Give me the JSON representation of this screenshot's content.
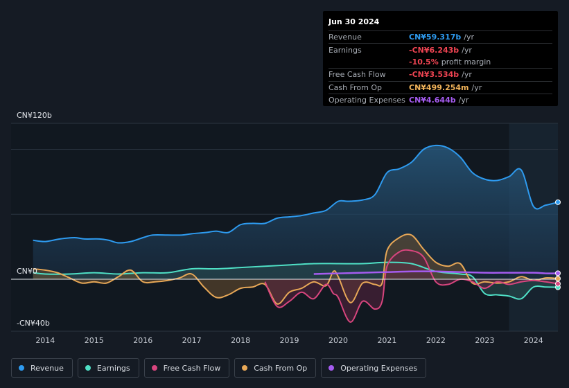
{
  "tooltip": {
    "date": "Jun 30 2024",
    "rows": [
      {
        "label": "Revenue",
        "value": "CN¥59.317b",
        "unit": "/yr",
        "color": "#2e9bf0"
      },
      {
        "label": "Earnings",
        "value": "-CN¥6.243b",
        "unit": "/yr",
        "color": "#ef4452"
      },
      {
        "label": "",
        "value": "-10.5%",
        "unit": "profit margin",
        "color": "#ef4452"
      },
      {
        "label": "Free Cash Flow",
        "value": "-CN¥3.534b",
        "unit": "/yr",
        "color": "#ef4452"
      },
      {
        "label": "Cash From Op",
        "value": "CN¥499.254m",
        "unit": "/yr",
        "color": "#f2b45a"
      },
      {
        "label": "Operating Expenses",
        "value": "CN¥4.644b",
        "unit": "/yr",
        "color": "#a55cf0"
      }
    ]
  },
  "legend": [
    {
      "label": "Revenue",
      "color": "#2e9bf0"
    },
    {
      "label": "Earnings",
      "color": "#4fe0c6"
    },
    {
      "label": "Free Cash Flow",
      "color": "#d8457e"
    },
    {
      "label": "Cash From Op",
      "color": "#e8a857"
    },
    {
      "label": "Operating Expenses",
      "color": "#a55cf0"
    }
  ],
  "chart_data": {
    "type": "area",
    "title": "",
    "ylabel_top": "CN¥120b",
    "ylabel_zero": "CN¥0",
    "ylabel_bottom": "-CN¥40b",
    "ylim": [
      -40,
      120
    ],
    "x_ticks": [
      "2014",
      "2015",
      "2016",
      "2017",
      "2018",
      "2019",
      "2020",
      "2021",
      "2022",
      "2023",
      "2024"
    ],
    "x_tick_values": [
      2014.0,
      2015.0,
      2016.0,
      2017.0,
      2018.0,
      2019.0,
      2020.0,
      2021.0,
      2022.0,
      2023.0,
      2024.0
    ],
    "xlim": [
      2013.3,
      2024.5
    ],
    "forecast_start": 2023.5,
    "series": [
      {
        "name": "Revenue",
        "color": "#2e9bf0",
        "x": [
          2013.75,
          2014.0,
          2014.3,
          2014.6,
          2014.8,
          2015.1,
          2015.3,
          2015.5,
          2015.75,
          2016.0,
          2016.2,
          2016.5,
          2016.8,
          2017.0,
          2017.3,
          2017.5,
          2017.75,
          2018.0,
          2018.25,
          2018.5,
          2018.75,
          2019.0,
          2019.25,
          2019.5,
          2019.75,
          2020.0,
          2020.2,
          2020.5,
          2020.75,
          2021.0,
          2021.25,
          2021.5,
          2021.75,
          2022.0,
          2022.25,
          2022.5,
          2022.75,
          2023.0,
          2023.25,
          2023.5,
          2023.75,
          2024.0,
          2024.25,
          2024.5
        ],
        "y": [
          30,
          29,
          31,
          32,
          31,
          31,
          30,
          28,
          29,
          32,
          34,
          34,
          34,
          35,
          36,
          37,
          36,
          42,
          43,
          43,
          47,
          48,
          49,
          51,
          53,
          60,
          60,
          61,
          65,
          82,
          85,
          90,
          100,
          103,
          101,
          94,
          82,
          77,
          76,
          79,
          84,
          56,
          57,
          59.3
        ]
      },
      {
        "name": "Earnings",
        "color": "#4fe0c6",
        "x": [
          2013.75,
          2014.0,
          2014.5,
          2015.0,
          2015.5,
          2016.0,
          2016.5,
          2017.0,
          2017.5,
          2018.0,
          2018.5,
          2019.0,
          2019.5,
          2020.0,
          2020.5,
          2021.0,
          2021.5,
          2022.0,
          2022.5,
          2022.75,
          2023.0,
          2023.25,
          2023.5,
          2023.75,
          2024.0,
          2024.25,
          2024.5
        ],
        "y": [
          5,
          4,
          4,
          5,
          4,
          5,
          5,
          8,
          8,
          9,
          10,
          11,
          12,
          12,
          12,
          13,
          12,
          6,
          4,
          2,
          -11,
          -12,
          -13,
          -15,
          -6,
          -6,
          -6.2
        ]
      },
      {
        "name": "Free Cash Flow",
        "color": "#d8457e",
        "x": [
          2018.5,
          2018.75,
          2019.0,
          2019.25,
          2019.5,
          2019.75,
          2019.9,
          2020.0,
          2020.25,
          2020.5,
          2020.75,
          2020.9,
          2021.0,
          2021.25,
          2021.5,
          2021.75,
          2022.0,
          2022.25,
          2022.5,
          2022.75,
          2023.0,
          2023.25,
          2023.5,
          2023.75,
          2024.0,
          2024.25,
          2024.5
        ],
        "y": [
          -2,
          -21,
          -17,
          -10,
          -15,
          -4,
          -11,
          -14,
          -33,
          -17,
          -23,
          -17,
          10,
          21,
          22,
          17,
          -2,
          -4,
          0,
          -2,
          -7,
          -2,
          -4,
          -2,
          -1,
          -2,
          -3.5
        ]
      },
      {
        "name": "Cash From Op",
        "color": "#e8a857",
        "x": [
          2013.75,
          2014.0,
          2014.25,
          2014.5,
          2014.75,
          2015.0,
          2015.25,
          2015.5,
          2015.75,
          2016.0,
          2016.25,
          2016.5,
          2016.75,
          2017.0,
          2017.25,
          2017.5,
          2017.75,
          2018.0,
          2018.25,
          2018.5,
          2018.75,
          2019.0,
          2019.25,
          2019.5,
          2019.75,
          2019.9,
          2020.0,
          2020.25,
          2020.5,
          2020.75,
          2020.9,
          2021.0,
          2021.25,
          2021.5,
          2021.75,
          2022.0,
          2022.25,
          2022.5,
          2022.75,
          2023.0,
          2023.25,
          2023.5,
          2023.75,
          2024.0,
          2024.25,
          2024.5
        ],
        "y": [
          8,
          7,
          5,
          1,
          -3,
          -2,
          -3,
          2,
          7,
          -2,
          -2,
          -1,
          1,
          4,
          -6,
          -14,
          -12,
          -7,
          -6,
          -4,
          -19,
          -10,
          -7,
          -2,
          -5,
          6,
          2,
          -18,
          -3,
          -4,
          -3,
          22,
          32,
          34,
          23,
          13,
          10,
          12,
          -3,
          -2,
          -3,
          -2,
          2,
          -1,
          1,
          0.5
        ]
      },
      {
        "name": "Operating Expenses",
        "color": "#a55cf0",
        "x": [
          2019.5,
          2020.0,
          2020.5,
          2021.0,
          2021.5,
          2022.0,
          2022.5,
          2023.0,
          2023.5,
          2024.0,
          2024.25,
          2024.5
        ],
        "y": [
          4,
          4.5,
          5,
          5.5,
          6,
          6,
          5.5,
          5,
          5,
          5,
          4.5,
          4.6
        ]
      }
    ]
  }
}
